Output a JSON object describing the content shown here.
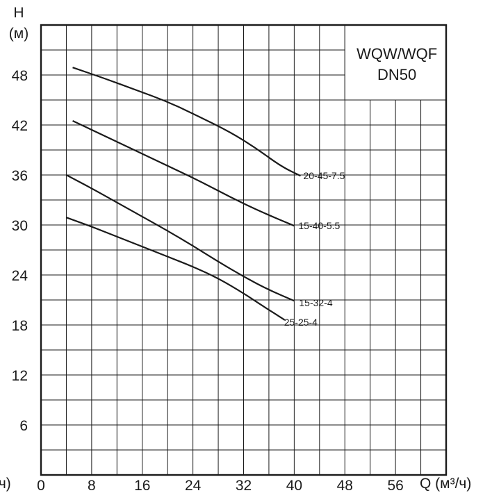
{
  "chart_data": {
    "type": "line",
    "title_lines": [
      "WQW/WQF",
      "DN50"
    ],
    "ylabel_lines": [
      "H",
      "(м)"
    ],
    "xlabel": "Q (м³/ч)",
    "xlabel_left_fragment": "/ч)",
    "xlim": [
      0,
      64
    ],
    "ylim": [
      0,
      54
    ],
    "x_ticks": [
      "0",
      "8",
      "16",
      "24",
      "32",
      "40",
      "48",
      "56"
    ],
    "x_tick_values": [
      0,
      8,
      16,
      24,
      32,
      40,
      48,
      56
    ],
    "y_ticks": [
      "6",
      "12",
      "18",
      "24",
      "30",
      "36",
      "42",
      "48"
    ],
    "y_tick_values": [
      6,
      12,
      18,
      24,
      30,
      36,
      42,
      48
    ],
    "grid": true,
    "series": [
      {
        "name": "20-45-7.5",
        "points": [
          [
            5,
            48.9
          ],
          [
            10,
            47.6
          ],
          [
            15,
            46.2
          ],
          [
            20,
            44.8
          ],
          [
            25,
            43.0
          ],
          [
            30,
            41.1
          ],
          [
            34,
            39.2
          ],
          [
            38,
            37.0
          ],
          [
            41,
            35.9
          ]
        ]
      },
      {
        "name": "15-40-5.5",
        "points": [
          [
            5,
            42.5
          ],
          [
            10,
            40.7
          ],
          [
            15,
            38.9
          ],
          [
            20,
            37.1
          ],
          [
            25,
            35.3
          ],
          [
            30,
            33.3
          ],
          [
            35,
            31.5
          ],
          [
            40,
            29.9
          ]
        ]
      },
      {
        "name": "15-32-4",
        "points": [
          [
            4,
            36.0
          ],
          [
            8,
            34.4
          ],
          [
            12,
            32.7
          ],
          [
            16,
            31.0
          ],
          [
            20,
            29.3
          ],
          [
            24,
            27.5
          ],
          [
            28,
            25.6
          ],
          [
            32,
            23.8
          ],
          [
            36,
            22.2
          ],
          [
            40,
            20.9
          ]
        ]
      },
      {
        "name": "25-25-4",
        "points": [
          [
            4,
            30.9
          ],
          [
            8,
            29.8
          ],
          [
            12,
            28.6
          ],
          [
            16,
            27.4
          ],
          [
            20,
            26.2
          ],
          [
            24,
            25.0
          ],
          [
            28,
            23.6
          ],
          [
            32,
            21.8
          ],
          [
            35,
            20.3
          ],
          [
            38.5,
            18.6
          ]
        ]
      }
    ]
  }
}
